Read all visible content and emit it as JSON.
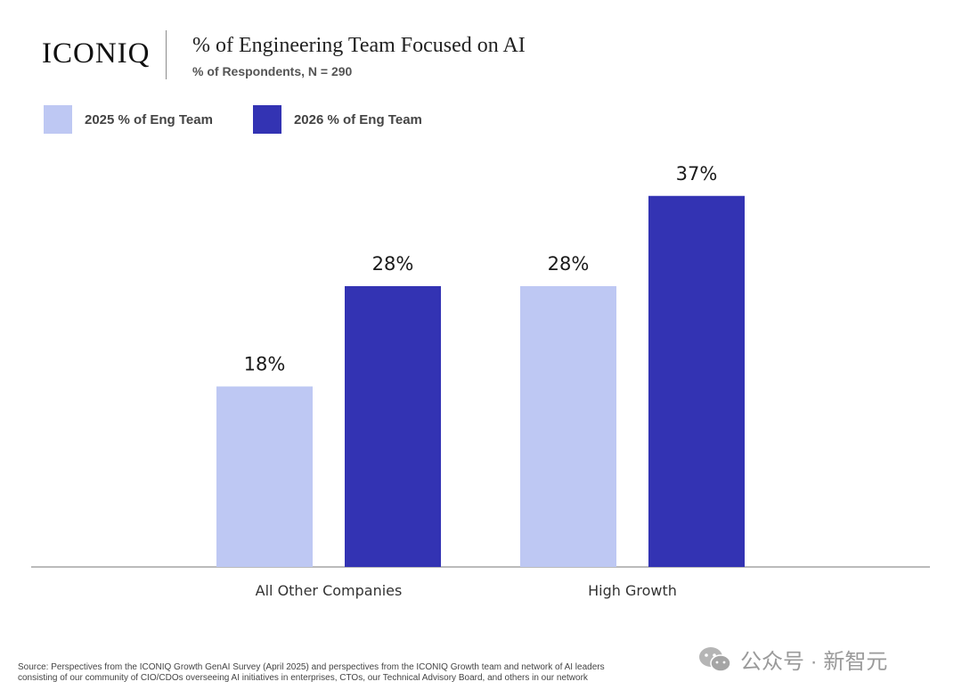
{
  "header": {
    "logo": "ICONIQ",
    "title": "% of Engineering Team Focused on AI",
    "subtitle": "% of Respondents, N = 290"
  },
  "legend": [
    {
      "label": "2025 % of Eng Team",
      "color": "#BEC8F3"
    },
    {
      "label": "2026 % of Eng Team",
      "color": "#3333B3"
    }
  ],
  "chart_data": {
    "type": "bar",
    "title": "% of Engineering Team Focused on AI",
    "subtitle": "% of Respondents, N = 290",
    "categories": [
      "All Other Companies",
      "High Growth"
    ],
    "series": [
      {
        "name": "2025 % of Eng Team",
        "values": [
          18,
          28
        ],
        "labels": [
          "18%",
          "28%"
        ],
        "color": "#BEC8F3"
      },
      {
        "name": "2026 % of Eng Team",
        "values": [
          28,
          37
        ],
        "labels": [
          "28%",
          "37%"
        ],
        "color": "#3333B3"
      }
    ],
    "ylim": [
      0,
      40
    ],
    "grid": false,
    "legend_position": "top-left"
  },
  "footer": {
    "source_line1": "Source: Perspectives from the ICONIQ Growth GenAI Survey (April 2025) and perspectives from the ICONIQ Growth team and network of AI leaders",
    "source_line2": "consisting of our community of CIO/CDOs overseeing AI initiatives in enterprises, CTOs, our Technical Advisory Board, and others in our network",
    "watermark": "公众号 · 新智元"
  }
}
